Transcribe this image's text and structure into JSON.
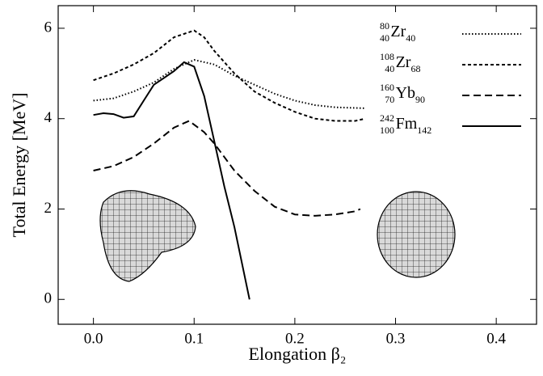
{
  "chart_data": {
    "type": "line",
    "xlabel": "Elongation β₂",
    "ylabel": "Total Energy [MeV]",
    "xlim": [
      -0.035,
      0.44
    ],
    "ylim": [
      -0.55,
      6.5
    ],
    "xticks": [
      {
        "value": 0,
        "label": "0.0"
      },
      0.1,
      0.2,
      0.3,
      0.4
    ],
    "yticks": [
      0,
      2,
      4,
      6
    ],
    "legend": "upper right",
    "series": [
      {
        "name": {
          "mass": "80",
          "charge": "40",
          "element": "Zr",
          "neutrons": "40"
        },
        "color": "#000000",
        "linestyle": "dotted",
        "x": [
          0,
          0.02,
          0.04,
          0.06,
          0.08,
          0.1,
          0.12,
          0.14,
          0.16,
          0.18,
          0.2,
          0.22,
          0.24,
          0.27
        ],
        "values": [
          4.4,
          4.45,
          4.6,
          4.8,
          5.1,
          5.3,
          5.2,
          4.95,
          4.75,
          4.55,
          4.4,
          4.3,
          4.25,
          4.23
        ]
      },
      {
        "name": {
          "mass": "108",
          "charge": "40",
          "element": "Zr",
          "neutrons": "68"
        },
        "color": "#000000",
        "linestyle": "short-dashed",
        "x": [
          0,
          0.02,
          0.04,
          0.06,
          0.08,
          0.1,
          0.11,
          0.12,
          0.14,
          0.16,
          0.18,
          0.2,
          0.22,
          0.24,
          0.26,
          0.27
        ],
        "values": [
          4.85,
          5.0,
          5.2,
          5.45,
          5.8,
          5.95,
          5.8,
          5.5,
          5.0,
          4.6,
          4.35,
          4.15,
          4.0,
          3.95,
          3.95,
          4.0
        ]
      },
      {
        "name": {
          "mass": "160",
          "charge": "70",
          "element": "Yb",
          "neutrons": "90"
        },
        "color": "#000000",
        "linestyle": "dashed",
        "x": [
          0,
          0.02,
          0.04,
          0.06,
          0.08,
          0.095,
          0.11,
          0.12,
          0.14,
          0.16,
          0.18,
          0.2,
          0.22,
          0.24,
          0.26,
          0.265
        ],
        "values": [
          2.85,
          2.95,
          3.15,
          3.45,
          3.8,
          3.95,
          3.7,
          3.45,
          2.85,
          2.4,
          2.05,
          1.88,
          1.85,
          1.88,
          1.95,
          2.0
        ]
      },
      {
        "name": {
          "mass": "242",
          "charge": "100",
          "element": "Fm",
          "neutrons": "142"
        },
        "color": "#000000",
        "linestyle": "solid",
        "x": [
          0,
          0.01,
          0.02,
          0.03,
          0.04,
          0.05,
          0.06,
          0.07,
          0.08,
          0.09,
          0.1,
          0.11,
          0.12,
          0.13,
          0.14,
          0.155
        ],
        "values": [
          4.08,
          4.12,
          4.1,
          4.02,
          4.05,
          4.4,
          4.75,
          4.9,
          5.05,
          5.25,
          5.15,
          4.5,
          3.5,
          2.5,
          1.6,
          0
        ]
      }
    ]
  }
}
